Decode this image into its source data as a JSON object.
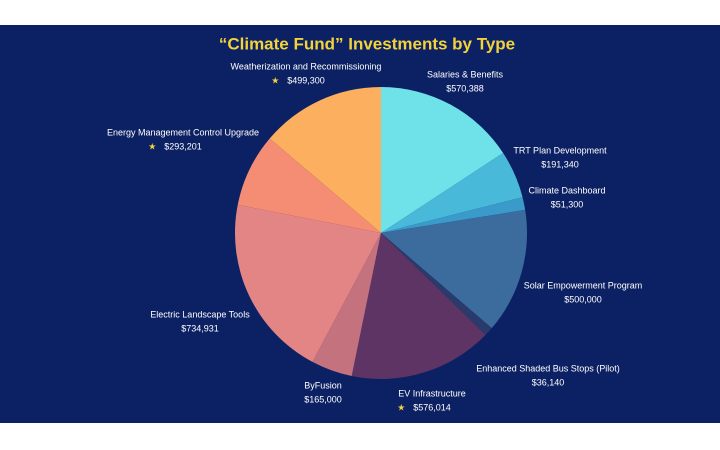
{
  "chart_data": {
    "type": "pie",
    "title": "“Climate Fund” Investments by Type",
    "categories": [
      "Salaries & Benefits",
      "TRT Plan Development",
      "Climate Dashboard",
      "Solar Empowerment Program",
      "Enhanced Shaded Bus Stops (Pilot)",
      "EV Infrastructure",
      "ByFusion",
      "Electric Landscape Tools",
      "Energy Management Control Upgrade",
      "Weatherization and Recommissioning"
    ],
    "values": [
      570388,
      191340,
      51300,
      500000,
      36140,
      576014,
      165000,
      734931,
      293201,
      499300
    ],
    "value_labels": [
      "$570,388",
      "$191,340",
      "$51,300",
      "$500,000",
      "$36,140",
      "$576,014",
      "$165,000",
      "$734,931",
      "$293,201",
      "$499,300"
    ],
    "colors": [
      "#6fe1e9",
      "#48b9d9",
      "#3a9bcb",
      "#3c6b9e",
      "#2a3a6a",
      "#5d3463",
      "#c5727f",
      "#e48585",
      "#f48d73",
      "#fbaf5f"
    ],
    "starred": [
      false,
      false,
      false,
      false,
      false,
      true,
      false,
      false,
      true,
      true
    ]
  }
}
